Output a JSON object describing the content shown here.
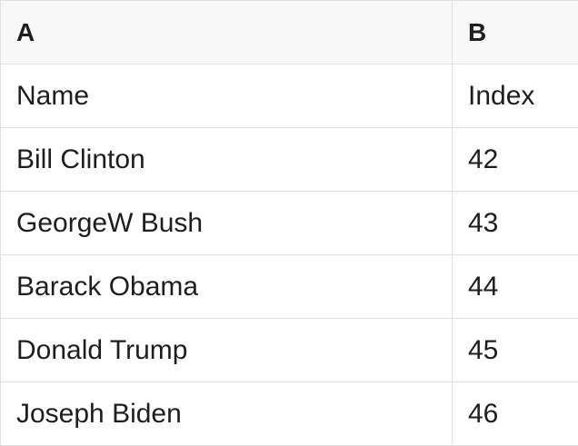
{
  "colors": {
    "header_bg": "#f8f8f8",
    "cell_bg": "#ffffff",
    "border": "#e0e0e0",
    "text": "#1e1e1e"
  },
  "table": {
    "columns": [
      {
        "id": "A",
        "header": "A"
      },
      {
        "id": "B",
        "header": "B"
      }
    ],
    "rows": [
      {
        "a": "Name",
        "b": "Index"
      },
      {
        "a": "Bill Clinton",
        "b": "42"
      },
      {
        "a": "GeorgeW Bush",
        "b": "43"
      },
      {
        "a": "Barack Obama",
        "b": "44"
      },
      {
        "a": "Donald Trump",
        "b": "45"
      },
      {
        "a": "Joseph Biden",
        "b": "46"
      }
    ]
  }
}
